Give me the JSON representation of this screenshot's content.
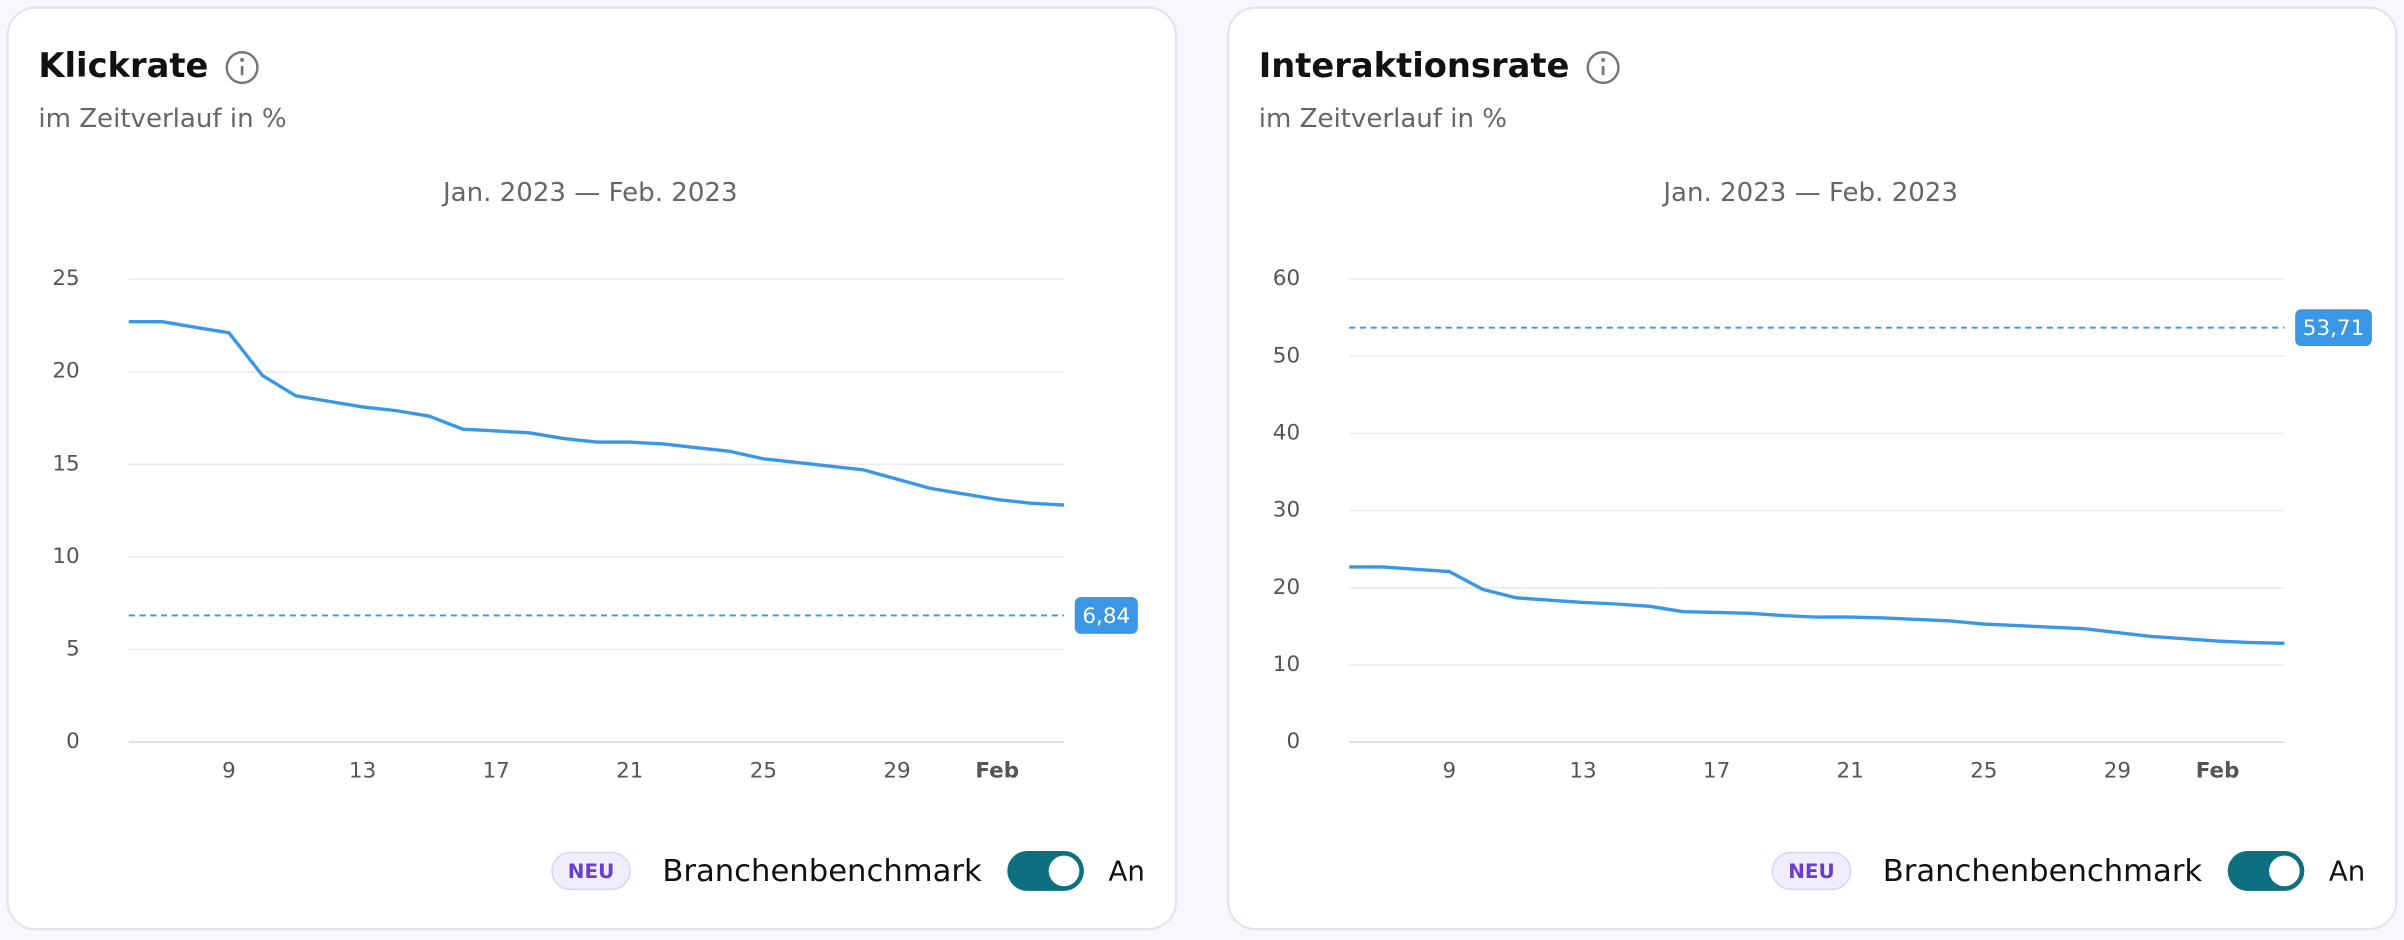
{
  "cards": [
    {
      "title": "Klickrate",
      "subtitle": "im Zeitverlauf in %",
      "badge": "NEU",
      "toggle_label": "Branchenbenchmark",
      "toggle_state": "An"
    },
    {
      "title": "Interaktionsrate",
      "subtitle": "im Zeitverlauf in %",
      "badge": "NEU",
      "toggle_label": "Branchenbenchmark",
      "toggle_state": "An"
    }
  ],
  "chart_data": [
    {
      "type": "line",
      "subtitle": "Jan. 2023 — Feb. 2023",
      "categories": [
        null,
        null,
        null,
        "9",
        null,
        null,
        null,
        "13",
        null,
        null,
        null,
        "17",
        null,
        null,
        null,
        "21",
        null,
        null,
        null,
        "25",
        null,
        null,
        null,
        "29",
        null,
        null,
        "Feb",
        null,
        null
      ],
      "series": [
        {
          "color": "#3a97e6",
          "values": [
            22.7,
            22.7,
            22.4,
            22.1,
            19.8,
            18.7,
            18.4,
            18.1,
            17.9,
            17.6,
            16.9,
            16.8,
            16.7,
            16.4,
            16.2,
            16.2,
            16.1,
            15.9,
            15.7,
            15.3,
            15.1,
            14.9,
            14.7,
            14.2,
            13.7,
            13.4,
            13.1,
            12.9,
            12.8
          ]
        }
      ],
      "benchmark": {
        "value": 6.84,
        "label": "6,84",
        "color": "#3a97e6"
      },
      "ylim": [
        0,
        25
      ],
      "yticks": [
        0,
        5,
        10,
        15,
        20,
        25
      ],
      "grid": true
    },
    {
      "type": "line",
      "subtitle": "Jan. 2023 — Feb. 2023",
      "categories": [
        null,
        null,
        null,
        "9",
        null,
        null,
        null,
        "13",
        null,
        null,
        null,
        "17",
        null,
        null,
        null,
        "21",
        null,
        null,
        null,
        "25",
        null,
        null,
        null,
        "29",
        null,
        null,
        "Feb",
        null,
        null
      ],
      "series": [
        {
          "color": "#3a97e6",
          "values": [
            22.7,
            22.7,
            22.4,
            22.1,
            19.8,
            18.7,
            18.4,
            18.1,
            17.9,
            17.6,
            16.9,
            16.8,
            16.7,
            16.4,
            16.2,
            16.2,
            16.1,
            15.9,
            15.7,
            15.3,
            15.1,
            14.9,
            14.7,
            14.2,
            13.7,
            13.4,
            13.1,
            12.9,
            12.8
          ]
        }
      ],
      "benchmark": {
        "value": 53.71,
        "label": "53,71",
        "color": "#3a97e6"
      },
      "ylim": [
        0,
        60
      ],
      "yticks": [
        0,
        10,
        20,
        30,
        40,
        50,
        60
      ],
      "grid": true
    }
  ]
}
